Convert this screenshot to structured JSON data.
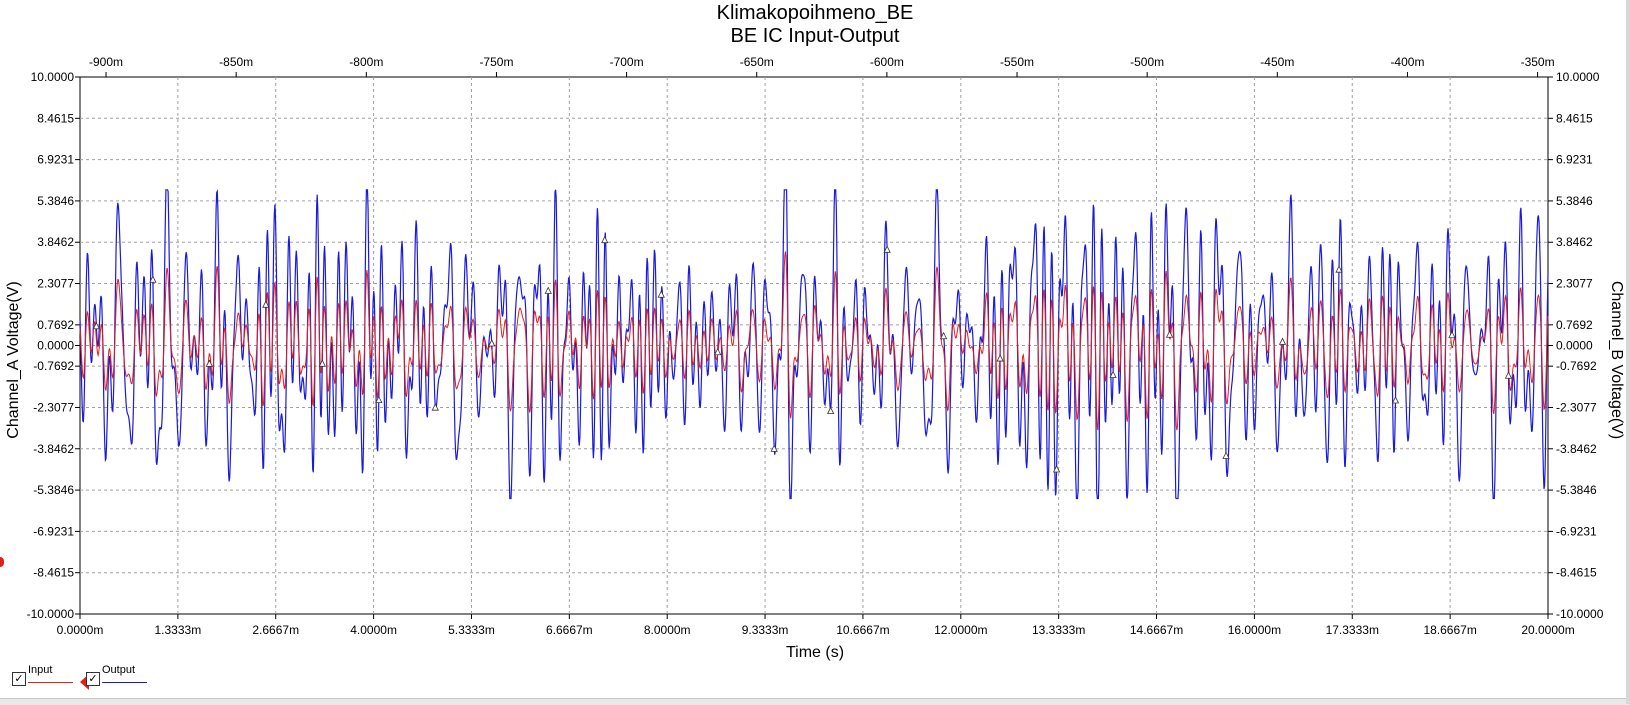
{
  "chart_data": {
    "type": "line",
    "title": "Klimakopoihmeno_BE",
    "subtitle": "BE IC Input-Output",
    "xlabel": "Time (s)",
    "ylabel_left": "Channel_A Voltage(V)",
    "ylabel_right": "Channel_B Voltage(V)",
    "xlim_ms": [
      0,
      20
    ],
    "top_xlim_ms": [
      -910,
      -346
    ],
    "ylim": [
      -10,
      10
    ],
    "grid": true,
    "legend_position": "bottom-left",
    "x_tick_labels": [
      "0.0000m",
      "1.3333m",
      "2.6667m",
      "4.0000m",
      "5.3333m",
      "6.6667m",
      "8.0000m",
      "9.3333m",
      "10.6667m",
      "12.0000m",
      "13.3333m",
      "14.6667m",
      "16.0000m",
      "17.3333m",
      "18.6667m",
      "20.0000m"
    ],
    "top_tick_labels": [
      "-900m",
      "-850m",
      "-800m",
      "-750m",
      "-700m",
      "-650m",
      "-600m",
      "-550m",
      "-500m",
      "-450m",
      "-400m",
      "-350m"
    ],
    "top_tick_values": [
      -900,
      -850,
      -800,
      -750,
      -700,
      -650,
      -600,
      -550,
      -500,
      -450,
      -400,
      -350
    ],
    "y_tick_labels_left": [
      "10.0000",
      "8.4615",
      "6.9231",
      "5.3846",
      "3.8462",
      "2.3077",
      "0.7692",
      "0.0000",
      "-0.7692",
      "-2.3077",
      "-3.8462",
      "-5.3846",
      "-6.9231",
      "-8.4615",
      "-10.0000"
    ],
    "y_tick_labels_right": [
      "10.0000",
      "8.4615",
      "6.9231",
      "5.3846",
      "3.8462",
      "2.3077",
      "0.7692",
      "0.0000",
      "-0.7692",
      "-2.3077",
      "-3.8462",
      "-5.3846",
      "-6.9231",
      "-8.4615",
      "-10.0000"
    ],
    "y_tick_values": [
      10,
      8.4615,
      6.9231,
      5.3846,
      3.8462,
      2.3077,
      0.7692,
      0,
      -0.7692,
      -2.3077,
      -3.8462,
      -5.3846,
      -6.9231,
      -8.4615,
      -10
    ],
    "series": [
      {
        "name": "Input",
        "color": "#e0201a",
        "amplitude_range": [
          -3.5,
          3.5
        ]
      },
      {
        "name": "Output",
        "color": "#1a1adc",
        "amplitude_range": [
          -5.7,
          5.8
        ]
      }
    ]
  },
  "legend": {
    "input_label": "Input",
    "output_label": "Output",
    "input_checked": true,
    "output_checked": true
  }
}
